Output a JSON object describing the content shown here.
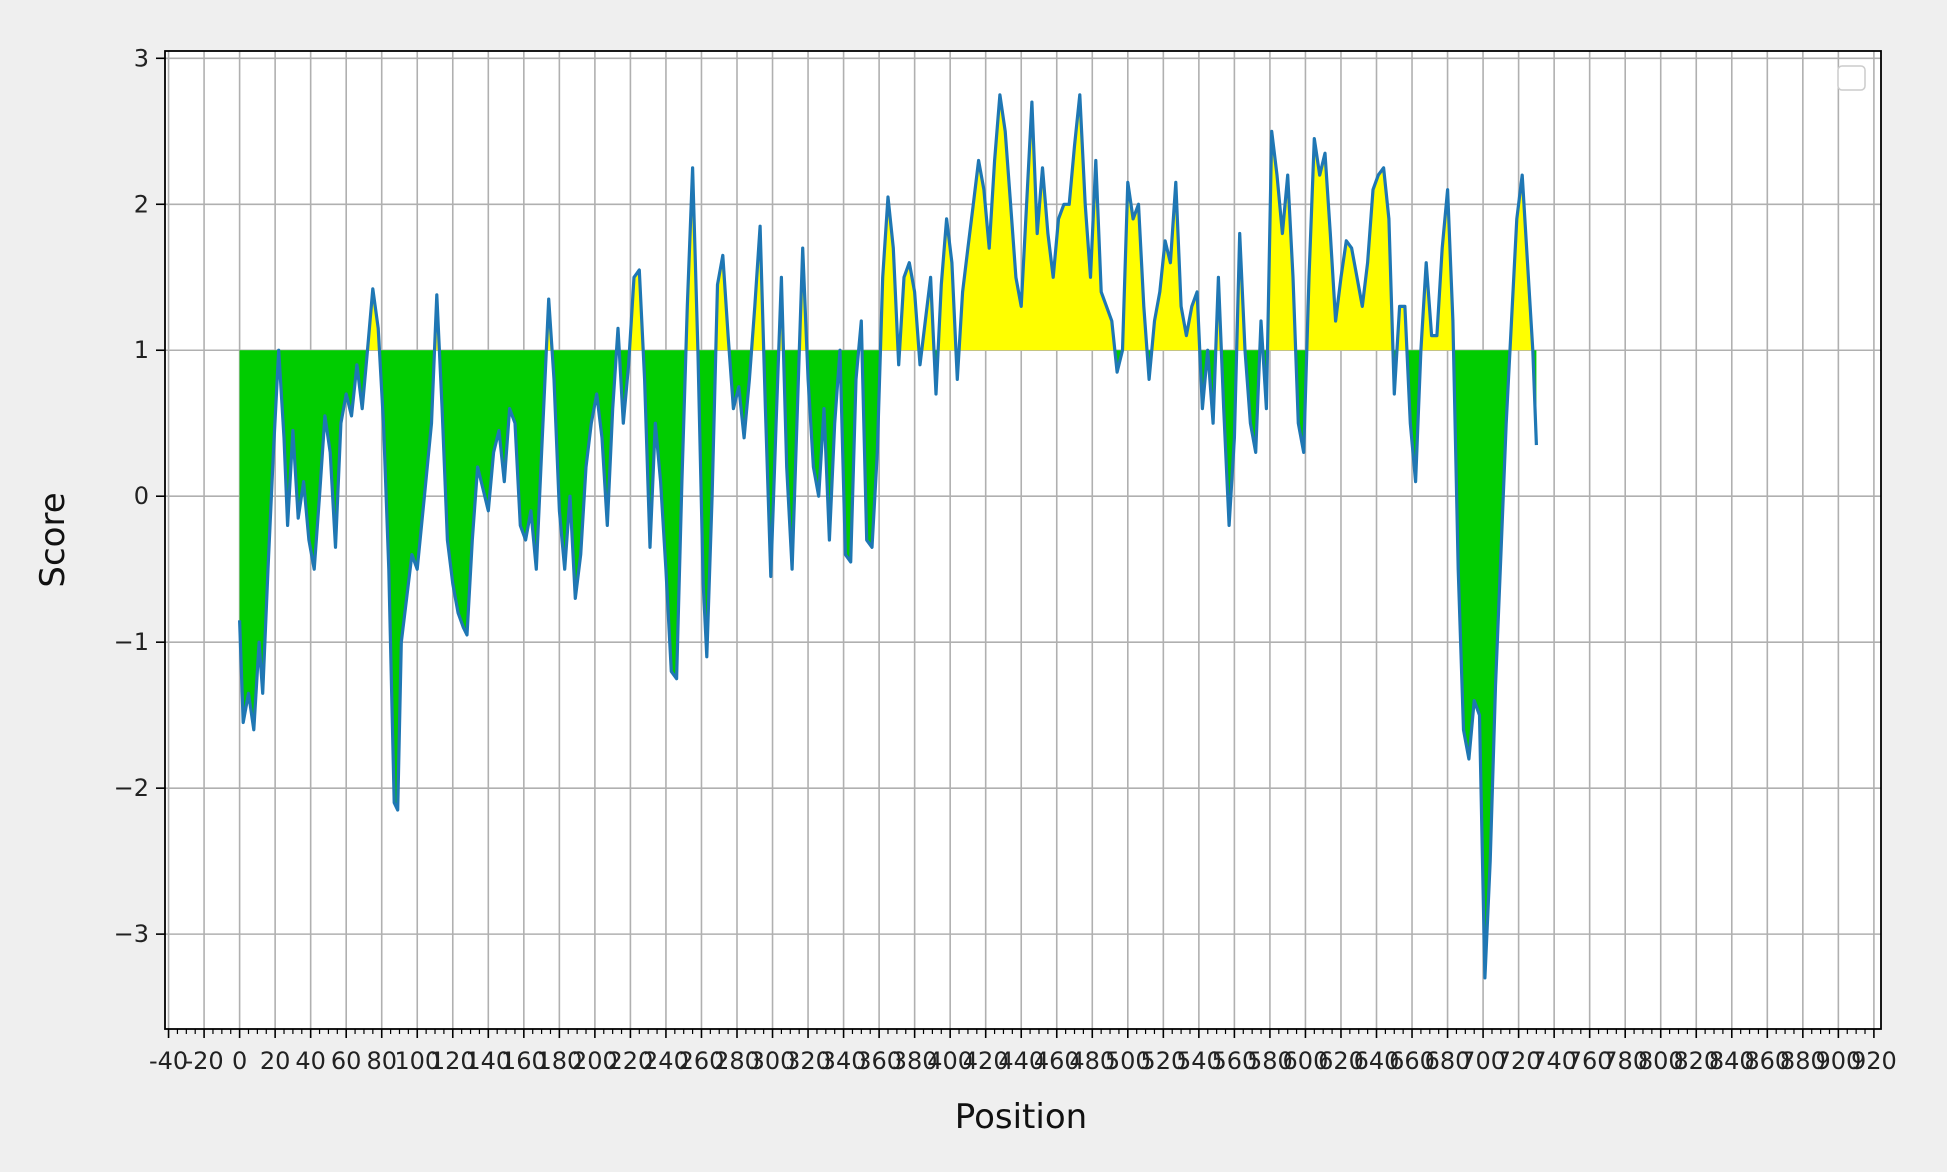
{
  "chart_data": {
    "type": "area",
    "title": "",
    "xlabel": "Position",
    "ylabel": "Score",
    "xlim": [
      -42,
      924
    ],
    "ylim": [
      -3.65,
      3.05
    ],
    "xticks": [
      -40,
      -20,
      0,
      20,
      40,
      60,
      80,
      100,
      120,
      140,
      160,
      180,
      200,
      220,
      240,
      260,
      280,
      300,
      320,
      340,
      360,
      380,
      400,
      420,
      440,
      460,
      480,
      500,
      520,
      540,
      560,
      580,
      600,
      620,
      640,
      660,
      680,
      700,
      720,
      740,
      760,
      780,
      800,
      820,
      840,
      860,
      880,
      900,
      920
    ],
    "xtick_labels": [
      "-40",
      "-20",
      "0",
      "20",
      "40",
      "60",
      "80",
      "100",
      "120",
      "140",
      "160",
      "180",
      "200",
      "220",
      "240",
      "260",
      "280",
      "300",
      "320",
      "340",
      "360",
      "380",
      "400",
      "420",
      "440",
      "460",
      "480",
      "500",
      "520",
      "540",
      "560",
      "580",
      "600",
      "620",
      "640",
      "660",
      "680",
      "700",
      "720",
      "740",
      "760",
      "780",
      "800",
      "820",
      "840",
      "860",
      "880",
      "900",
      "920"
    ],
    "yticks": [
      -3,
      -2,
      -1,
      0,
      1,
      2,
      3
    ],
    "ytick_labels": [
      "−3",
      "−2",
      "−1",
      "0",
      "1",
      "2",
      "3"
    ],
    "grid": true,
    "legend": "top-right (empty)",
    "baseline": 1,
    "fill_below_color": "#00cc00",
    "fill_above_color": "#ffff00",
    "line_color": "#1f77b4",
    "series": [
      {
        "values": [
          [
            0,
            -0.85
          ],
          [
            2,
            -1.55
          ],
          [
            5,
            -1.35
          ],
          [
            8,
            -1.6
          ],
          [
            11,
            -1.0
          ],
          [
            13,
            -1.35
          ],
          [
            16,
            -0.5
          ],
          [
            19,
            0.3
          ],
          [
            22,
            1.0
          ],
          [
            25,
            0.4
          ],
          [
            27,
            -0.2
          ],
          [
            30,
            0.45
          ],
          [
            33,
            -0.15
          ],
          [
            36,
            0.1
          ],
          [
            39,
            -0.3
          ],
          [
            42,
            -0.5
          ],
          [
            45,
            0.0
          ],
          [
            48,
            0.55
          ],
          [
            51,
            0.3
          ],
          [
            54,
            -0.35
          ],
          [
            57,
            0.5
          ],
          [
            60,
            0.7
          ],
          [
            63,
            0.55
          ],
          [
            66,
            0.9
          ],
          [
            69,
            0.6
          ],
          [
            72,
            1.0
          ],
          [
            75,
            1.42
          ],
          [
            78,
            1.15
          ],
          [
            81,
            0.5
          ],
          [
            84,
            -0.5
          ],
          [
            87,
            -2.1
          ],
          [
            89,
            -2.15
          ],
          [
            91,
            -1.0
          ],
          [
            94,
            -0.7
          ],
          [
            97,
            -0.4
          ],
          [
            100,
            -0.5
          ],
          [
            104,
            0.0
          ],
          [
            108,
            0.5
          ],
          [
            111,
            1.38
          ],
          [
            114,
            0.6
          ],
          [
            117,
            -0.3
          ],
          [
            120,
            -0.6
          ],
          [
            123,
            -0.8
          ],
          [
            126,
            -0.9
          ],
          [
            128,
            -0.95
          ],
          [
            131,
            -0.3
          ],
          [
            134,
            0.2
          ],
          [
            137,
            0.05
          ],
          [
            140,
            -0.1
          ],
          [
            143,
            0.3
          ],
          [
            146,
            0.45
          ],
          [
            149,
            0.1
          ],
          [
            152,
            0.6
          ],
          [
            155,
            0.5
          ],
          [
            158,
            -0.2
          ],
          [
            161,
            -0.3
          ],
          [
            164,
            -0.1
          ],
          [
            167,
            -0.5
          ],
          [
            170,
            0.3
          ],
          [
            174,
            1.35
          ],
          [
            177,
            0.8
          ],
          [
            180,
            -0.1
          ],
          [
            183,
            -0.5
          ],
          [
            186,
            0.0
          ],
          [
            189,
            -0.7
          ],
          [
            192,
            -0.4
          ],
          [
            195,
            0.2
          ],
          [
            198,
            0.5
          ],
          [
            201,
            0.7
          ],
          [
            204,
            0.4
          ],
          [
            207,
            -0.2
          ],
          [
            210,
            0.6
          ],
          [
            213,
            1.15
          ],
          [
            216,
            0.5
          ],
          [
            219,
            0.9
          ],
          [
            222,
            1.5
          ],
          [
            225,
            1.55
          ],
          [
            228,
            0.8
          ],
          [
            231,
            -0.35
          ],
          [
            234,
            0.5
          ],
          [
            237,
            0.1
          ],
          [
            240,
            -0.5
          ],
          [
            243,
            -1.2
          ],
          [
            246,
            -1.25
          ],
          [
            249,
            0.1
          ],
          [
            252,
            1.3
          ],
          [
            255,
            2.25
          ],
          [
            258,
            1.0
          ],
          [
            261,
            -0.6
          ],
          [
            263,
            -1.1
          ],
          [
            266,
            0.0
          ],
          [
            269,
            1.45
          ],
          [
            272,
            1.65
          ],
          [
            275,
            1.1
          ],
          [
            278,
            0.6
          ],
          [
            281,
            0.75
          ],
          [
            284,
            0.4
          ],
          [
            287,
            0.8
          ],
          [
            290,
            1.3
          ],
          [
            293,
            1.85
          ],
          [
            296,
            0.6
          ],
          [
            299,
            -0.55
          ],
          [
            302,
            0.5
          ],
          [
            305,
            1.5
          ],
          [
            308,
            0.2
          ],
          [
            311,
            -0.5
          ],
          [
            314,
            0.6
          ],
          [
            317,
            1.7
          ],
          [
            320,
            0.8
          ],
          [
            323,
            0.2
          ],
          [
            326,
            0.0
          ],
          [
            329,
            0.6
          ],
          [
            332,
            -0.3
          ],
          [
            335,
            0.5
          ],
          [
            338,
            1.0
          ],
          [
            341,
            -0.4
          ],
          [
            344,
            -0.45
          ],
          [
            347,
            0.8
          ],
          [
            350,
            1.2
          ],
          [
            353,
            -0.3
          ],
          [
            356,
            -0.35
          ],
          [
            359,
            0.3
          ],
          [
            362,
            1.5
          ],
          [
            365,
            2.05
          ],
          [
            368,
            1.7
          ],
          [
            371,
            0.9
          ],
          [
            374,
            1.5
          ],
          [
            377,
            1.6
          ],
          [
            380,
            1.4
          ],
          [
            383,
            0.9
          ],
          [
            386,
            1.2
          ],
          [
            389,
            1.5
          ],
          [
            392,
            0.7
          ],
          [
            395,
            1.45
          ],
          [
            398,
            1.9
          ],
          [
            401,
            1.6
          ],
          [
            404,
            0.8
          ],
          [
            407,
            1.4
          ],
          [
            410,
            1.7
          ],
          [
            413,
            2.0
          ],
          [
            416,
            2.3
          ],
          [
            419,
            2.1
          ],
          [
            422,
            1.7
          ],
          [
            425,
            2.3
          ],
          [
            428,
            2.75
          ],
          [
            431,
            2.5
          ],
          [
            434,
            2.0
          ],
          [
            437,
            1.5
          ],
          [
            440,
            1.3
          ],
          [
            443,
            2.0
          ],
          [
            446,
            2.7
          ],
          [
            449,
            1.8
          ],
          [
            452,
            2.25
          ],
          [
            455,
            1.8
          ],
          [
            458,
            1.5
          ],
          [
            461,
            1.9
          ],
          [
            464,
            2.0
          ],
          [
            467,
            2.0
          ],
          [
            470,
            2.4
          ],
          [
            473,
            2.75
          ],
          [
            476,
            2.0
          ],
          [
            479,
            1.5
          ],
          [
            482,
            2.3
          ],
          [
            485,
            1.4
          ],
          [
            488,
            1.3
          ],
          [
            491,
            1.2
          ],
          [
            494,
            0.85
          ],
          [
            497,
            1.0
          ],
          [
            500,
            2.15
          ],
          [
            503,
            1.9
          ],
          [
            506,
            2.0
          ],
          [
            509,
            1.3
          ],
          [
            512,
            0.8
          ],
          [
            515,
            1.2
          ],
          [
            518,
            1.4
          ],
          [
            521,
            1.75
          ],
          [
            524,
            1.6
          ],
          [
            527,
            2.15
          ],
          [
            530,
            1.3
          ],
          [
            533,
            1.1
          ],
          [
            536,
            1.3
          ],
          [
            539,
            1.4
          ],
          [
            542,
            0.6
          ],
          [
            545,
            1.0
          ],
          [
            548,
            0.5
          ],
          [
            551,
            1.5
          ],
          [
            554,
            0.6
          ],
          [
            557,
            -0.2
          ],
          [
            560,
            0.4
          ],
          [
            563,
            1.8
          ],
          [
            566,
            1.0
          ],
          [
            569,
            0.5
          ],
          [
            572,
            0.3
          ],
          [
            575,
            1.2
          ],
          [
            578,
            0.6
          ],
          [
            581,
            2.5
          ],
          [
            584,
            2.2
          ],
          [
            587,
            1.8
          ],
          [
            590,
            2.2
          ],
          [
            593,
            1.5
          ],
          [
            596,
            0.5
          ],
          [
            599,
            0.3
          ],
          [
            602,
            1.5
          ],
          [
            605,
            2.45
          ],
          [
            608,
            2.2
          ],
          [
            611,
            2.35
          ],
          [
            614,
            1.8
          ],
          [
            617,
            1.2
          ],
          [
            620,
            1.5
          ],
          [
            623,
            1.75
          ],
          [
            626,
            1.7
          ],
          [
            629,
            1.5
          ],
          [
            632,
            1.3
          ],
          [
            635,
            1.6
          ],
          [
            638,
            2.1
          ],
          [
            641,
            2.2
          ],
          [
            644,
            2.25
          ],
          [
            647,
            1.9
          ],
          [
            650,
            0.7
          ],
          [
            653,
            1.3
          ],
          [
            656,
            1.3
          ],
          [
            659,
            0.5
          ],
          [
            662,
            0.1
          ],
          [
            665,
            1.0
          ],
          [
            668,
            1.6
          ],
          [
            671,
            1.1
          ],
          [
            674,
            1.1
          ],
          [
            677,
            1.7
          ],
          [
            680,
            2.1
          ],
          [
            683,
            1.2
          ],
          [
            686,
            -0.5
          ],
          [
            689,
            -1.6
          ],
          [
            692,
            -1.8
          ],
          [
            695,
            -1.4
          ],
          [
            698,
            -1.5
          ],
          [
            701,
            -3.3
          ],
          [
            704,
            -2.5
          ],
          [
            707,
            -1.3
          ],
          [
            710,
            -0.4
          ],
          [
            713,
            0.5
          ],
          [
            716,
            1.2
          ],
          [
            719,
            1.9
          ],
          [
            722,
            2.2
          ],
          [
            725,
            1.6
          ],
          [
            728,
            1.0
          ],
          [
            730,
            0.35
          ]
        ]
      }
    ]
  }
}
